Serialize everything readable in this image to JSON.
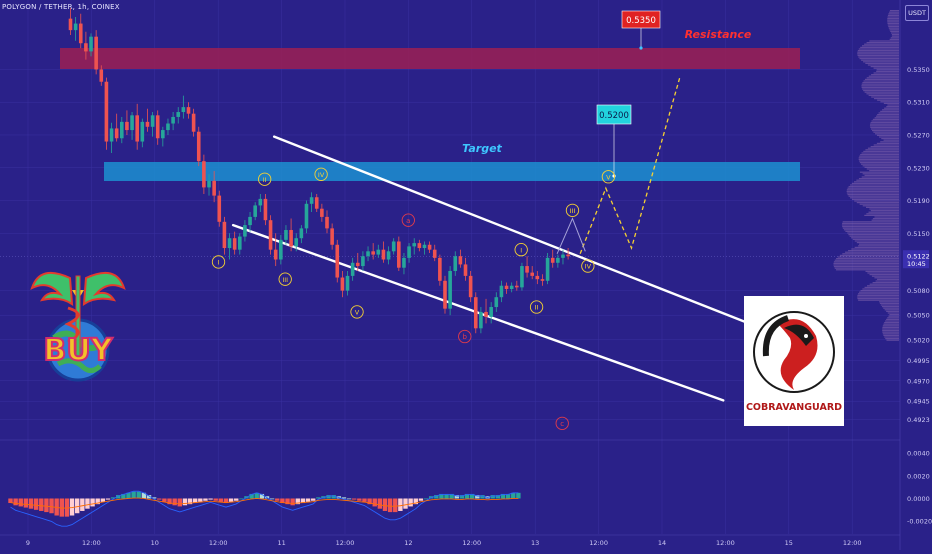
{
  "header": {
    "symbol": "POLYGON / TETHER, 1h, COINEX",
    "currency_button": "USDT"
  },
  "colors": {
    "background": "#2a2189",
    "up": "#26a69a",
    "down": "#ef5350",
    "resistance_zone": "#9c1f54",
    "target_zone": "#1c8fd1",
    "path": "#f5d033",
    "label": "#f5d033"
  },
  "chart_data": {
    "type": "candlestick",
    "title": "",
    "ylim": [
      0.4905,
      0.5425
    ],
    "price_ticks": [
      "0.5350",
      "0.5310",
      "0.5270",
      "0.5230",
      "0.5190",
      "0.5150",
      "0.5122",
      "0.5080",
      "0.5050",
      "0.5020",
      "0.4995",
      "0.4970",
      "0.4945",
      "0.4923"
    ],
    "last_price": "0.5122",
    "countdown": "10:45",
    "x_ticks": [
      "9",
      "12:00",
      "10",
      "12:00",
      "11",
      "12:00",
      "12",
      "12:00",
      "13",
      "12:00",
      "14",
      "12:00",
      "15",
      "12:00"
    ],
    "candle_interval_hours": 1,
    "candles": [
      {
        "o": 0.5412,
        "h": 0.5425,
        "l": 0.5392,
        "c": 0.5398
      },
      {
        "o": 0.5398,
        "h": 0.5414,
        "l": 0.5385,
        "c": 0.5406
      },
      {
        "o": 0.5406,
        "h": 0.5418,
        "l": 0.5376,
        "c": 0.5382
      },
      {
        "o": 0.5382,
        "h": 0.5396,
        "l": 0.5362,
        "c": 0.5372
      },
      {
        "o": 0.5372,
        "h": 0.5394,
        "l": 0.5366,
        "c": 0.539
      },
      {
        "o": 0.539,
        "h": 0.5398,
        "l": 0.5344,
        "c": 0.535
      },
      {
        "o": 0.535,
        "h": 0.5355,
        "l": 0.533,
        "c": 0.5335
      },
      {
        "o": 0.5335,
        "h": 0.534,
        "l": 0.5252,
        "c": 0.5262
      },
      {
        "o": 0.5262,
        "h": 0.5285,
        "l": 0.5248,
        "c": 0.5278
      },
      {
        "o": 0.5278,
        "h": 0.5296,
        "l": 0.5262,
        "c": 0.5266
      },
      {
        "o": 0.5266,
        "h": 0.5292,
        "l": 0.526,
        "c": 0.5286
      },
      {
        "o": 0.5286,
        "h": 0.53,
        "l": 0.527,
        "c": 0.5276
      },
      {
        "o": 0.5276,
        "h": 0.5298,
        "l": 0.5264,
        "c": 0.5294
      },
      {
        "o": 0.5294,
        "h": 0.5308,
        "l": 0.5252,
        "c": 0.5262
      },
      {
        "o": 0.5262,
        "h": 0.529,
        "l": 0.5255,
        "c": 0.5286
      },
      {
        "o": 0.5286,
        "h": 0.5302,
        "l": 0.5274,
        "c": 0.528
      },
      {
        "o": 0.528,
        "h": 0.5298,
        "l": 0.5268,
        "c": 0.5294
      },
      {
        "o": 0.5294,
        "h": 0.53,
        "l": 0.5258,
        "c": 0.5266
      },
      {
        "o": 0.5266,
        "h": 0.528,
        "l": 0.5256,
        "c": 0.5276
      },
      {
        "o": 0.5276,
        "h": 0.529,
        "l": 0.527,
        "c": 0.5284
      },
      {
        "o": 0.5284,
        "h": 0.5298,
        "l": 0.5276,
        "c": 0.5292
      },
      {
        "o": 0.5292,
        "h": 0.5304,
        "l": 0.5284,
        "c": 0.5298
      },
      {
        "o": 0.5298,
        "h": 0.5318,
        "l": 0.529,
        "c": 0.5304
      },
      {
        "o": 0.5304,
        "h": 0.531,
        "l": 0.529,
        "c": 0.5296
      },
      {
        "o": 0.5296,
        "h": 0.5302,
        "l": 0.5268,
        "c": 0.5274
      },
      {
        "o": 0.5274,
        "h": 0.528,
        "l": 0.5232,
        "c": 0.5238
      },
      {
        "o": 0.5238,
        "h": 0.5246,
        "l": 0.5198,
        "c": 0.5206
      },
      {
        "o": 0.5206,
        "h": 0.5222,
        "l": 0.5196,
        "c": 0.5214
      },
      {
        "o": 0.5214,
        "h": 0.5226,
        "l": 0.5188,
        "c": 0.5196
      },
      {
        "o": 0.5196,
        "h": 0.5202,
        "l": 0.5158,
        "c": 0.5164
      },
      {
        "o": 0.5164,
        "h": 0.517,
        "l": 0.5124,
        "c": 0.5132
      },
      {
        "o": 0.5132,
        "h": 0.515,
        "l": 0.5118,
        "c": 0.5144
      },
      {
        "o": 0.5144,
        "h": 0.5152,
        "l": 0.5124,
        "c": 0.513
      },
      {
        "o": 0.513,
        "h": 0.515,
        "l": 0.5124,
        "c": 0.5146
      },
      {
        "o": 0.5146,
        "h": 0.5166,
        "l": 0.514,
        "c": 0.516
      },
      {
        "o": 0.516,
        "h": 0.5176,
        "l": 0.5152,
        "c": 0.517
      },
      {
        "o": 0.517,
        "h": 0.5188,
        "l": 0.5166,
        "c": 0.5184
      },
      {
        "o": 0.5184,
        "h": 0.5198,
        "l": 0.5176,
        "c": 0.5192
      },
      {
        "o": 0.5192,
        "h": 0.5198,
        "l": 0.516,
        "c": 0.5166
      },
      {
        "o": 0.5166,
        "h": 0.5172,
        "l": 0.5124,
        "c": 0.513
      },
      {
        "o": 0.513,
        "h": 0.515,
        "l": 0.511,
        "c": 0.5118
      },
      {
        "o": 0.5118,
        "h": 0.5148,
        "l": 0.5112,
        "c": 0.5142
      },
      {
        "o": 0.5142,
        "h": 0.516,
        "l": 0.5136,
        "c": 0.5154
      },
      {
        "o": 0.5154,
        "h": 0.5168,
        "l": 0.5128,
        "c": 0.5134
      },
      {
        "o": 0.5134,
        "h": 0.515,
        "l": 0.5128,
        "c": 0.5144
      },
      {
        "o": 0.5144,
        "h": 0.516,
        "l": 0.5138,
        "c": 0.5156
      },
      {
        "o": 0.5156,
        "h": 0.519,
        "l": 0.515,
        "c": 0.5186
      },
      {
        "o": 0.5186,
        "h": 0.52,
        "l": 0.5176,
        "c": 0.5194
      },
      {
        "o": 0.5194,
        "h": 0.5198,
        "l": 0.5176,
        "c": 0.518
      },
      {
        "o": 0.518,
        "h": 0.5186,
        "l": 0.5164,
        "c": 0.517
      },
      {
        "o": 0.517,
        "h": 0.5178,
        "l": 0.515,
        "c": 0.5156
      },
      {
        "o": 0.5156,
        "h": 0.5162,
        "l": 0.513,
        "c": 0.5136
      },
      {
        "o": 0.5136,
        "h": 0.5142,
        "l": 0.509,
        "c": 0.5096
      },
      {
        "o": 0.5096,
        "h": 0.5104,
        "l": 0.5072,
        "c": 0.508
      },
      {
        "o": 0.508,
        "h": 0.5104,
        "l": 0.5074,
        "c": 0.5098
      },
      {
        "o": 0.5098,
        "h": 0.512,
        "l": 0.5092,
        "c": 0.5114
      },
      {
        "o": 0.5114,
        "h": 0.5126,
        "l": 0.5104,
        "c": 0.511
      },
      {
        "o": 0.511,
        "h": 0.5128,
        "l": 0.5104,
        "c": 0.5122
      },
      {
        "o": 0.5122,
        "h": 0.5134,
        "l": 0.5116,
        "c": 0.5128
      },
      {
        "o": 0.5128,
        "h": 0.5138,
        "l": 0.5118,
        "c": 0.5124
      },
      {
        "o": 0.5124,
        "h": 0.5136,
        "l": 0.512,
        "c": 0.513
      },
      {
        "o": 0.513,
        "h": 0.514,
        "l": 0.5114,
        "c": 0.5118
      },
      {
        "o": 0.5118,
        "h": 0.5134,
        "l": 0.5112,
        "c": 0.5128
      },
      {
        "o": 0.5128,
        "h": 0.5144,
        "l": 0.5124,
        "c": 0.514
      },
      {
        "o": 0.514,
        "h": 0.5146,
        "l": 0.5104,
        "c": 0.5108
      },
      {
        "o": 0.5108,
        "h": 0.5126,
        "l": 0.51,
        "c": 0.512
      },
      {
        "o": 0.512,
        "h": 0.5138,
        "l": 0.5114,
        "c": 0.5134
      },
      {
        "o": 0.5134,
        "h": 0.5144,
        "l": 0.5124,
        "c": 0.5138
      },
      {
        "o": 0.5138,
        "h": 0.5142,
        "l": 0.5128,
        "c": 0.5132
      },
      {
        "o": 0.5132,
        "h": 0.514,
        "l": 0.5124,
        "c": 0.5136
      },
      {
        "o": 0.5136,
        "h": 0.514,
        "l": 0.5126,
        "c": 0.513
      },
      {
        "o": 0.513,
        "h": 0.5136,
        "l": 0.5116,
        "c": 0.512
      },
      {
        "o": 0.512,
        "h": 0.5124,
        "l": 0.5086,
        "c": 0.5092
      },
      {
        "o": 0.5092,
        "h": 0.5098,
        "l": 0.5052,
        "c": 0.5058
      },
      {
        "o": 0.5058,
        "h": 0.511,
        "l": 0.505,
        "c": 0.5104
      },
      {
        "o": 0.5104,
        "h": 0.5128,
        "l": 0.5098,
        "c": 0.5122
      },
      {
        "o": 0.5122,
        "h": 0.513,
        "l": 0.5108,
        "c": 0.5112
      },
      {
        "o": 0.5112,
        "h": 0.512,
        "l": 0.5092,
        "c": 0.5098
      },
      {
        "o": 0.5098,
        "h": 0.5104,
        "l": 0.5066,
        "c": 0.5072
      },
      {
        "o": 0.5072,
        "h": 0.5078,
        "l": 0.5028,
        "c": 0.5034
      },
      {
        "o": 0.5034,
        "h": 0.506,
        "l": 0.5028,
        "c": 0.5054
      },
      {
        "o": 0.5054,
        "h": 0.507,
        "l": 0.504,
        "c": 0.5048
      },
      {
        "o": 0.5048,
        "h": 0.5066,
        "l": 0.504,
        "c": 0.506
      },
      {
        "o": 0.506,
        "h": 0.5078,
        "l": 0.5054,
        "c": 0.5072
      },
      {
        "o": 0.5072,
        "h": 0.5092,
        "l": 0.5066,
        "c": 0.5086
      },
      {
        "o": 0.5086,
        "h": 0.509,
        "l": 0.5076,
        "c": 0.5082
      },
      {
        "o": 0.5082,
        "h": 0.509,
        "l": 0.5078,
        "c": 0.5086
      },
      {
        "o": 0.5086,
        "h": 0.5092,
        "l": 0.508,
        "c": 0.5084
      },
      {
        "o": 0.5084,
        "h": 0.5114,
        "l": 0.508,
        "c": 0.511
      },
      {
        "o": 0.511,
        "h": 0.5122,
        "l": 0.5096,
        "c": 0.5102
      },
      {
        "o": 0.5102,
        "h": 0.511,
        "l": 0.5094,
        "c": 0.5098
      },
      {
        "o": 0.5098,
        "h": 0.5104,
        "l": 0.5088,
        "c": 0.5094
      },
      {
        "o": 0.5094,
        "h": 0.51,
        "l": 0.5086,
        "c": 0.5092
      },
      {
        "o": 0.5092,
        "h": 0.5126,
        "l": 0.5088,
        "c": 0.512
      },
      {
        "o": 0.512,
        "h": 0.513,
        "l": 0.5108,
        "c": 0.5114
      },
      {
        "o": 0.5114,
        "h": 0.5124,
        "l": 0.5108,
        "c": 0.512
      },
      {
        "o": 0.512,
        "h": 0.513,
        "l": 0.5112,
        "c": 0.5124
      },
      {
        "o": 0.5124,
        "h": 0.5132,
        "l": 0.5118,
        "c": 0.5122
      }
    ],
    "zones": [
      {
        "name": "resistance",
        "label": "Resistance",
        "top": 0.5358,
        "bottom": 0.5335,
        "value_label": "0.5350"
      },
      {
        "name": "target",
        "label": "Target",
        "top": 0.5222,
        "bottom": 0.5201,
        "value_label": "0.5200"
      }
    ],
    "wave_labels": [
      {
        "text": "I",
        "i": 27,
        "y": 0.5115
      },
      {
        "text": "II",
        "i": 36,
        "y": 0.5216
      },
      {
        "text": "III",
        "i": 40,
        "y": 0.5094
      },
      {
        "text": "IV",
        "i": 47,
        "y": 0.5222
      },
      {
        "text": "V",
        "i": 54,
        "y": 0.5054
      },
      {
        "text": "a",
        "i": 64,
        "y": 0.5166
      },
      {
        "text": "b",
        "i": 75,
        "y": 0.5024
      },
      {
        "text": "I",
        "i": 86,
        "y": 0.513
      },
      {
        "text": "II",
        "i": 89,
        "y": 0.506
      },
      {
        "text": "III",
        "i": 96,
        "y": 0.5178
      },
      {
        "text": "IV",
        "i": 99,
        "y": 0.511
      },
      {
        "text": "V",
        "i": 103,
        "y": 0.5219
      },
      {
        "text": "c",
        "i": 94,
        "y": 0.4918
      }
    ],
    "forecast_path": [
      {
        "i": 97.5,
        "y": 0.5125
      },
      {
        "i": 102.5,
        "y": 0.5205
      },
      {
        "i": 107.5,
        "y": 0.5132
      },
      {
        "i": 117,
        "y": 0.5342
      }
    ],
    "projection_grey": [
      {
        "i": 93,
        "y": 0.5125
      },
      {
        "i": 96,
        "y": 0.5168
      },
      {
        "i": 98.5,
        "y": 0.5128
      }
    ],
    "channel_upper": [
      {
        "i": 32,
        "y": 0.5268
      },
      {
        "i": 107,
        "y": 0.504
      }
    ],
    "channel_lower": [
      {
        "i": 24,
        "y": 0.516
      },
      {
        "i": 102,
        "y": 0.4946
      }
    ],
    "macd_ticks": [
      "0.0040",
      "0.0020",
      "0.0000",
      "-0.0020"
    ],
    "macd_ylim": [
      -0.0026,
      0.0048
    ],
    "macd_histogram": [
      -0.0004,
      -0.0006,
      -0.0007,
      -0.0008,
      -0.0009,
      -0.001,
      -0.0011,
      -0.0012,
      -0.0013,
      -0.0015,
      -0.0016,
      -0.0016,
      -0.0015,
      -0.0013,
      -0.0011,
      -0.0009,
      -0.0007,
      -0.0005,
      -0.0003,
      -0.0001,
      0.0001,
      0.0003,
      0.0004,
      0.0005,
      0.0006,
      0.0006,
      0.0005,
      0.0003,
      0.0001,
      -0.0001,
      -0.0003,
      -0.0005,
      -0.0006,
      -0.0007,
      -0.0006,
      -0.0005,
      -0.0004,
      -0.0003,
      -0.0002,
      -0.0001,
      -0.0002,
      -0.0003,
      -0.0004,
      -0.0003,
      -0.0002,
      0.0,
      0.0002,
      0.0004,
      0.0005,
      0.0004,
      0.0002,
      0.0,
      -0.0002,
      -0.0004,
      -0.0005,
      -0.0006,
      -0.0005,
      -0.0004,
      -0.0003,
      -0.0002,
      0.0001,
      0.0002,
      0.0003,
      0.0003,
      0.0002,
      0.0001,
      0.0,
      -0.0001,
      -0.0002,
      -0.0003,
      -0.0005,
      -0.0007,
      -0.0009,
      -0.0011,
      -0.0012,
      -0.0012,
      -0.0011,
      -0.0009,
      -0.0007,
      -0.0005,
      -0.0002,
      0.0,
      0.0002,
      0.0003,
      0.0004,
      0.0004,
      0.0004,
      0.0003,
      0.0003,
      0.0004,
      0.0004,
      0.0003,
      0.0003,
      0.0002,
      0.0003,
      0.0003,
      0.0004,
      0.0004,
      0.0005,
      0.0005
    ]
  },
  "watermark": {
    "brand": "COBRAVANGUARD",
    "sticker": "BUY"
  }
}
